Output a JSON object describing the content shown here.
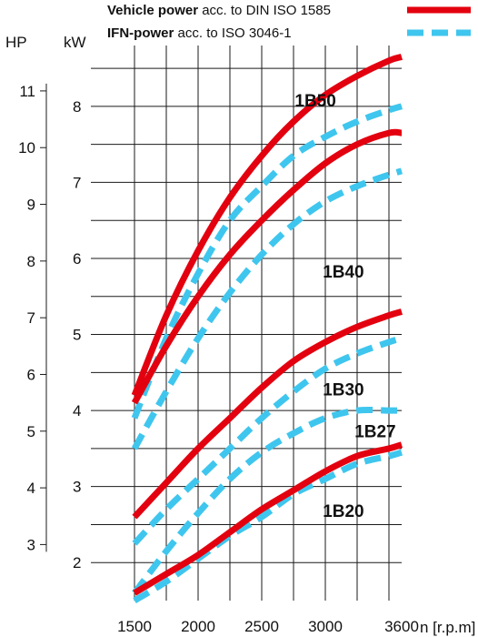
{
  "chart_data": {
    "type": "line",
    "legend": {
      "position": "top-right",
      "entries": [
        {
          "bold": "Vehicle power",
          "rest": " acc. to DIN ISO 1585",
          "style": "solid",
          "color": "#e3000f"
        },
        {
          "bold": "IFN-power",
          "rest": " acc. to ISO 3046-1",
          "style": "dashed",
          "color": "#3fc6ee"
        }
      ]
    },
    "xlabel": "n [r.p.m]",
    "ylabel_left": "HP",
    "ylabel_right": "kW",
    "xlim": [
      1500,
      3600
    ],
    "x_ticks": [
      "1500",
      "2000",
      "2500",
      "3000",
      "3600"
    ],
    "x_tick_values": [
      1500,
      2000,
      2500,
      3000,
      3600
    ],
    "ylim_kw": [
      1.5,
      8.8
    ],
    "kw_ticks": [
      "2",
      "3",
      "4",
      "5",
      "6",
      "7",
      "8"
    ],
    "kw_tick_values": [
      2,
      3,
      4,
      5,
      6,
      7,
      8
    ],
    "hp_ticks": [
      "3",
      "4",
      "5",
      "6",
      "7",
      "8",
      "9",
      "10",
      "11"
    ],
    "hp_tick_values": [
      3,
      4,
      5,
      6,
      7,
      8,
      9,
      10,
      11
    ],
    "grid": true,
    "x": [
      1500,
      1750,
      2000,
      2250,
      2500,
      2750,
      3000,
      3250,
      3500,
      3600
    ],
    "series": [
      {
        "name": "1B50",
        "kind": "vehicle",
        "values": [
          4.2,
          5.25,
          6.1,
          6.8,
          7.35,
          7.8,
          8.15,
          8.4,
          8.6,
          8.65
        ]
      },
      {
        "name": "1B50",
        "kind": "ifn",
        "values": [
          3.9,
          4.95,
          5.8,
          6.5,
          6.95,
          7.35,
          7.6,
          7.8,
          7.95,
          8.0
        ]
      },
      {
        "name": "1B40",
        "kind": "vehicle",
        "values": [
          4.1,
          4.85,
          5.5,
          6.05,
          6.5,
          6.9,
          7.25,
          7.5,
          7.65,
          7.65
        ]
      },
      {
        "name": "1B40",
        "kind": "ifn",
        "values": [
          3.5,
          4.25,
          4.95,
          5.55,
          6.05,
          6.45,
          6.75,
          6.95,
          7.1,
          7.15
        ]
      },
      {
        "name": "1B30",
        "kind": "vehicle",
        "values": [
          2.6,
          3.05,
          3.5,
          3.9,
          4.3,
          4.65,
          4.9,
          5.1,
          5.25,
          5.3
        ]
      },
      {
        "name": "1B30",
        "kind": "ifn",
        "values": [
          2.25,
          2.7,
          3.1,
          3.5,
          3.9,
          4.25,
          4.55,
          4.75,
          4.9,
          4.95
        ]
      },
      {
        "name": "1B27",
        "kind": "ifn",
        "values": [
          1.6,
          2.15,
          2.65,
          3.1,
          3.45,
          3.7,
          3.9,
          4.0,
          4.0,
          4.0
        ]
      },
      {
        "name": "1B20",
        "kind": "vehicle",
        "values": [
          1.6,
          1.85,
          2.1,
          2.4,
          2.7,
          2.95,
          3.2,
          3.4,
          3.5,
          3.55
        ]
      },
      {
        "name": "1B20",
        "kind": "ifn",
        "values": [
          1.5,
          1.75,
          2.05,
          2.35,
          2.6,
          2.9,
          3.1,
          3.3,
          3.4,
          3.45
        ]
      }
    ],
    "curve_labels": [
      {
        "text": "1B50",
        "x": 2760,
        "y": 8.0
      },
      {
        "text": "1B40",
        "x": 2980,
        "y": 5.75
      },
      {
        "text": "1B30",
        "x": 2980,
        "y": 4.2
      },
      {
        "text": "1B27",
        "x": 3230,
        "y": 3.65
      },
      {
        "text": "1B20",
        "x": 2980,
        "y": 2.6
      }
    ]
  }
}
